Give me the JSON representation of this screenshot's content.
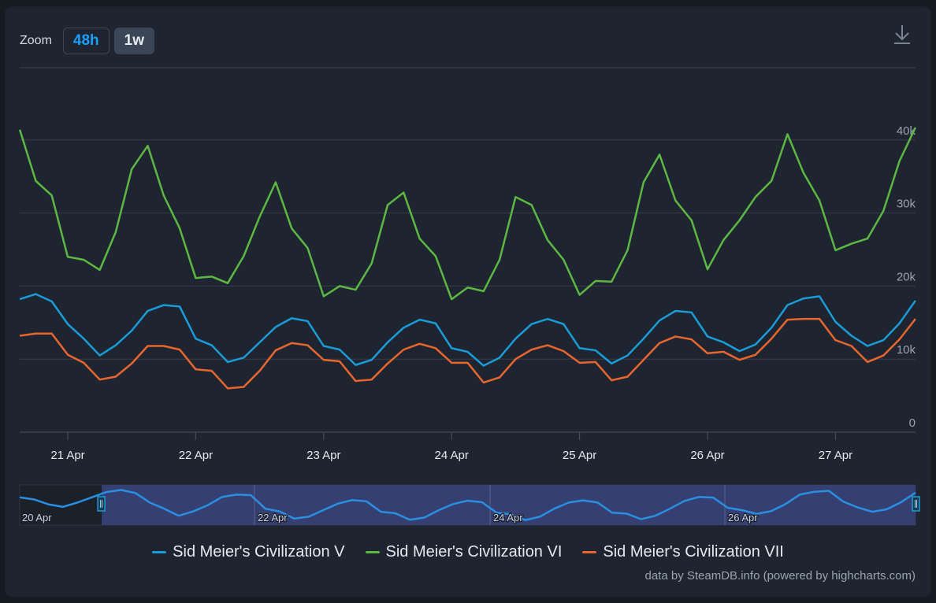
{
  "toolbar": {
    "zoom_label": "Zoom",
    "buttons": [
      {
        "label": "48h",
        "active": false
      },
      {
        "label": "1w",
        "active": true
      }
    ],
    "download_icon": "download-icon"
  },
  "chart_data": {
    "type": "line",
    "title": "",
    "xlabel": "",
    "ylabel": "",
    "ylim": [
      0,
      50000
    ],
    "yticks": [
      0,
      10000,
      20000,
      30000,
      40000
    ],
    "ytick_labels": [
      "0",
      "10k",
      "20k",
      "30k",
      "40k"
    ],
    "xticks": [
      "21 Apr",
      "22 Apr",
      "23 Apr",
      "24 Apr",
      "25 Apr",
      "26 Apr",
      "27 Apr"
    ],
    "x_start": "20 Apr 15:00",
    "x_step_hours": 3,
    "x_start_offset_days": -0.375,
    "grid": true,
    "legend_position": "bottom",
    "series": [
      {
        "name": "Sid Meier's Civilization V",
        "color": "#1a9cd8",
        "values": [
          18200,
          18900,
          17900,
          14800,
          12800,
          10500,
          11900,
          13900,
          16600,
          17400,
          17200,
          12800,
          11900,
          9600,
          10200,
          12300,
          14400,
          15600,
          15200,
          11800,
          11300,
          9200,
          9900,
          12300,
          14300,
          15400,
          14900,
          11500,
          11000,
          9100,
          10200,
          12800,
          14800,
          15500,
          14800,
          11500,
          11200,
          9400,
          10500,
          12800,
          15300,
          16600,
          16400,
          13100,
          12300,
          11100,
          12000,
          14300,
          17400,
          18300,
          18600,
          15100,
          13200,
          11800,
          12600,
          14900,
          18000
        ]
      },
      {
        "name": "Sid Meier's Civilization VI",
        "color": "#5cb842",
        "values": [
          41400,
          34400,
          32400,
          24000,
          23600,
          22200,
          27400,
          36000,
          39200,
          32400,
          27900,
          21100,
          21300,
          20400,
          24100,
          29500,
          34200,
          27900,
          25200,
          18600,
          20000,
          19500,
          23100,
          31100,
          32800,
          26500,
          24100,
          18200,
          19800,
          19300,
          23600,
          32200,
          31100,
          26300,
          23600,
          18800,
          20700,
          20600,
          24900,
          34200,
          38000,
          31700,
          29000,
          22300,
          26300,
          29000,
          32200,
          34400,
          40800,
          35500,
          31700,
          24900,
          25800,
          26500,
          30300,
          37100,
          41700
        ]
      },
      {
        "name": "Sid Meier's Civilization VII",
        "color": "#e8662e",
        "values": [
          13200,
          13500,
          13500,
          10600,
          9500,
          7200,
          7600,
          9400,
          11800,
          11800,
          11300,
          8600,
          8400,
          6000,
          6200,
          8400,
          11200,
          12200,
          11900,
          9900,
          9700,
          7000,
          7200,
          9400,
          11300,
          12100,
          11500,
          9500,
          9500,
          6800,
          7500,
          10000,
          11300,
          11900,
          11100,
          9500,
          9600,
          7100,
          7600,
          9900,
          12200,
          13100,
          12700,
          10800,
          11000,
          9900,
          10600,
          12800,
          15400,
          15500,
          15500,
          12600,
          11800,
          9600,
          10500,
          12700,
          15500
        ]
      }
    ]
  },
  "navigator": {
    "labels": [
      "20 Apr",
      "22 Apr",
      "24 Apr",
      "26 Apr"
    ],
    "selected_range_fraction": [
      0.081,
      1.0
    ]
  },
  "legend": {
    "items": [
      {
        "label": "Sid Meier's Civilization V",
        "color": "#1a9cd8"
      },
      {
        "label": "Sid Meier's Civilization VI",
        "color": "#5cb842"
      },
      {
        "label": "Sid Meier's Civilization VII",
        "color": "#e8662e"
      }
    ]
  },
  "credits": "data by SteamDB.info (powered by highcharts.com)"
}
